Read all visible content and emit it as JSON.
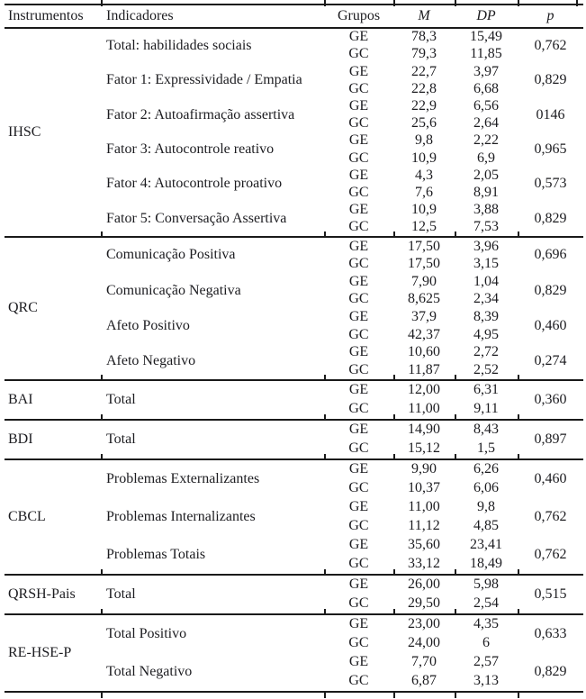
{
  "colors": {
    "text": "#1c1c20",
    "rule": "#1a1a1a",
    "background": "#ffffff"
  },
  "table": {
    "headers": {
      "instrumentos": "Instrumentos",
      "indicadores": "Indicadores",
      "grupos": "Grupos",
      "m": "M",
      "dp": "DP",
      "p": "p"
    },
    "sections": [
      {
        "instrument": "IHSC",
        "indicators": [
          {
            "label": "Total: habilidades sociais",
            "rows": [
              [
                "GE",
                "78,3",
                "15,49"
              ],
              [
                "GC",
                "79,3",
                "11,85"
              ]
            ],
            "p": "0,762"
          },
          {
            "label": "Fator 1: Expressividade / Empatia",
            "rows": [
              [
                "GE",
                "22,7",
                "3,97"
              ],
              [
                "GC",
                "22,8",
                "6,68"
              ]
            ],
            "p": "0,829"
          },
          {
            "label": "Fator 2: Autoafirmação assertiva",
            "rows": [
              [
                "GE",
                "22,9",
                "6,56"
              ],
              [
                "GC",
                "25,6",
                "2,64"
              ]
            ],
            "p": "0146"
          },
          {
            "label": "Fator 3: Autocontrole reativo",
            "rows": [
              [
                "GE",
                "9,8",
                "2,22"
              ],
              [
                "GC",
                "10,9",
                "6,9"
              ]
            ],
            "p": "0,965"
          },
          {
            "label": "Fator 4: Autocontrole proativo",
            "rows": [
              [
                "GE",
                "4,3",
                "2,05"
              ],
              [
                "GC",
                "7,6",
                "8,91"
              ]
            ],
            "p": "0,573"
          },
          {
            "label": "Fator 5: Conversação Assertiva",
            "rows": [
              [
                "GE",
                "10,9",
                "3,88"
              ],
              [
                "GC",
                "12,5",
                "7,53"
              ]
            ],
            "p": "0,829"
          }
        ]
      },
      {
        "instrument": "QRC",
        "indicators": [
          {
            "label": "Comunicação Positiva",
            "rows": [
              [
                "GE",
                "17,50",
                "3,96"
              ],
              [
                "GC",
                "17,50",
                "3,15"
              ]
            ],
            "p": "0,696"
          },
          {
            "label": "Comunicação Negativa",
            "rows": [
              [
                "GE",
                "7,90",
                "1,04"
              ],
              [
                "GC",
                "8,625",
                "2,34"
              ]
            ],
            "p": "0,829"
          },
          {
            "label": "Afeto Positivo",
            "rows": [
              [
                "GE",
                "37,9",
                "8,39"
              ],
              [
                "GC",
                "42,37",
                "4,95"
              ]
            ],
            "p": "0,460"
          },
          {
            "label": "Afeto Negativo",
            "rows": [
              [
                "GE",
                "10,60",
                "2,72"
              ],
              [
                "GC",
                "11,87",
                "2,52"
              ]
            ],
            "p": "0,274"
          }
        ]
      },
      {
        "instrument": "BAI",
        "indicators": [
          {
            "label": "Total",
            "rows": [
              [
                "GE",
                "12,00",
                "6,31"
              ],
              [
                "GC",
                "11,00",
                "9,11"
              ]
            ],
            "p": "0,360"
          }
        ]
      },
      {
        "instrument": "BDI",
        "indicators": [
          {
            "label": "Total",
            "rows": [
              [
                "GE",
                "14,90",
                "8,43"
              ],
              [
                "GC",
                "15,12",
                "1,5"
              ]
            ],
            "p": "0,897"
          }
        ]
      },
      {
        "instrument": "CBCL",
        "indicators": [
          {
            "label": "Problemas Externalizantes",
            "rows": [
              [
                "GE",
                "9,90",
                "6,26"
              ],
              [
                "GC",
                "10,37",
                "6,06"
              ]
            ],
            "p": "0,460"
          },
          {
            "label": "Problemas Internalizantes",
            "rows": [
              [
                "GE",
                "11,00",
                "9,8"
              ],
              [
                "GC",
                "11,12",
                "4,85"
              ]
            ],
            "p": "0,762"
          },
          {
            "label": "Problemas Totais",
            "rows": [
              [
                "GE",
                "35,60",
                "23,41"
              ],
              [
                "GC",
                "33,12",
                "18,49"
              ]
            ],
            "p": "0,762"
          }
        ]
      },
      {
        "instrument": "QRSH-Pais",
        "indicators": [
          {
            "label": "Total",
            "rows": [
              [
                "GE",
                "26,00",
                "5,98"
              ],
              [
                "GC",
                "29,50",
                "2,54"
              ]
            ],
            "p": "0,515"
          }
        ]
      },
      {
        "instrument": "RE-HSE-P",
        "indicators": [
          {
            "label": "Total Positivo",
            "rows": [
              [
                "GE",
                "23,00",
                "4,35"
              ],
              [
                "GC",
                "24,00",
                "6"
              ]
            ],
            "p": "0,633"
          },
          {
            "label": "Total Negativo",
            "rows": [
              [
                "GE",
                "7,70",
                "2,57"
              ],
              [
                "GC",
                "6,87",
                "3,13"
              ]
            ],
            "p": "0,829"
          }
        ]
      }
    ]
  }
}
